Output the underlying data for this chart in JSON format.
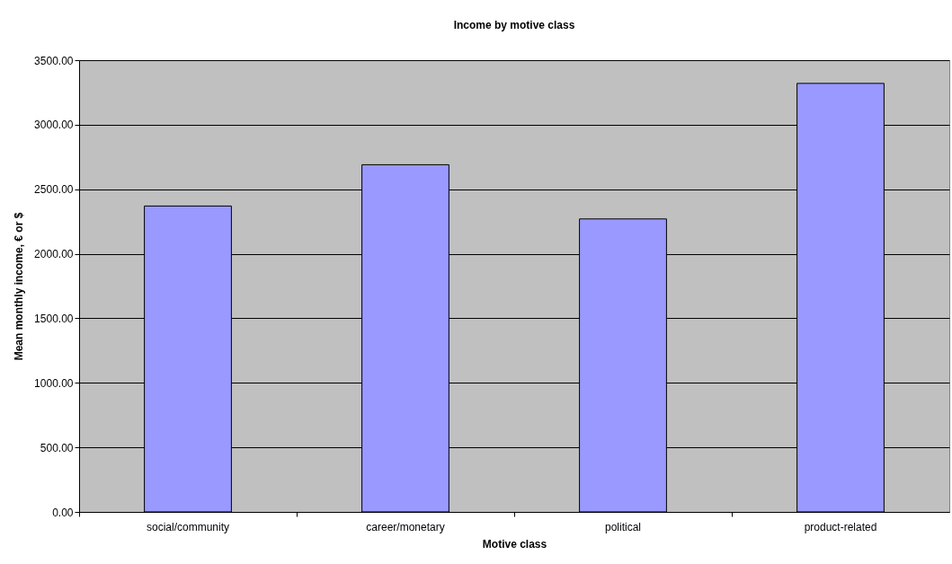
{
  "chart_data": {
    "type": "bar",
    "title": "Income by motive class",
    "xlabel": "Motive class",
    "ylabel": "Mean monthly income, € or $",
    "categories": [
      "social/community",
      "career/monetary",
      "political",
      "product-related"
    ],
    "values": [
      2370,
      2690,
      2270,
      3320
    ],
    "color": "#9999ff",
    "ylim": [
      0,
      3500
    ],
    "yticks": [
      {
        "value": 0,
        "label": "0.00"
      },
      {
        "value": 500,
        "label": "500.00"
      },
      {
        "value": 1000,
        "label": "1000.00"
      },
      {
        "value": 1500,
        "label": "1500.00"
      },
      {
        "value": 2000,
        "label": "2000.00"
      },
      {
        "value": 2500,
        "label": "2500.00"
      },
      {
        "value": 3000,
        "label": "3000.00"
      },
      {
        "value": 3500,
        "label": "3500.00"
      }
    ],
    "grid": "y"
  }
}
